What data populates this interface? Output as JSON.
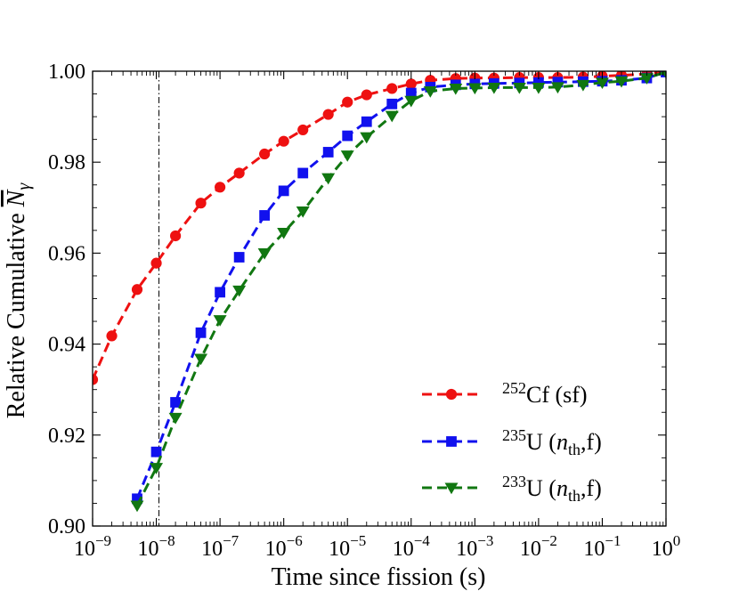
{
  "chart_data": {
    "type": "line",
    "xscale": "log",
    "xlim_exp": [
      -9,
      0
    ],
    "ylim": [
      0.9,
      1.0
    ],
    "xlabel": "Time since fission (s)",
    "ylabel": "Relative Cumulative N̅γ",
    "ylabel_text": "Relative Cumulative ",
    "ylabel_symbol": "N",
    "ylabel_subscript": "γ",
    "x_tick_base": "10",
    "x_ticks": [
      {
        "exp": "−9",
        "value": -9
      },
      {
        "exp": "−8",
        "value": -8
      },
      {
        "exp": "−7",
        "value": -7
      },
      {
        "exp": "−6",
        "value": -6
      },
      {
        "exp": "−5",
        "value": -5
      },
      {
        "exp": "−4",
        "value": -4
      },
      {
        "exp": "−3",
        "value": -3
      },
      {
        "exp": "−2",
        "value": -2
      },
      {
        "exp": "−1",
        "value": -1
      },
      {
        "exp": "0",
        "value": 0
      }
    ],
    "y_ticks": [
      {
        "label": "0.90",
        "value": 0.9
      },
      {
        "label": "0.92",
        "value": 0.92
      },
      {
        "label": "0.94",
        "value": 0.94
      },
      {
        "label": "0.96",
        "value": 0.96
      },
      {
        "label": "0.98",
        "value": 0.98
      },
      {
        "label": "1.00",
        "value": 1.0
      }
    ],
    "vertical_reference_line_x": 1.1e-08,
    "legend_position": "lower-right",
    "series": [
      {
        "name": "252Cf (sf)",
        "legend_sup": "252",
        "legend_main": "Cf (sf)",
        "legend_sub": "",
        "legend_tail": "",
        "color": "#ee1111",
        "marker": "circle",
        "x": [
          1e-09,
          2e-09,
          5e-09,
          1e-08,
          2e-08,
          5e-08,
          1e-07,
          2e-07,
          5e-07,
          1e-06,
          2e-06,
          5e-06,
          1e-05,
          2e-05,
          5e-05,
          0.0001,
          0.0002,
          0.0005,
          0.001,
          0.002,
          0.005,
          0.01,
          0.02,
          0.05,
          0.1,
          0.2,
          0.5,
          1
        ],
        "y": [
          0.9322,
          0.9418,
          0.952,
          0.9578,
          0.9638,
          0.971,
          0.9745,
          0.9776,
          0.9818,
          0.9846,
          0.9871,
          0.9905,
          0.9932,
          0.9948,
          0.9962,
          0.9972,
          0.998,
          0.9984,
          0.9985,
          0.9985,
          0.9986,
          0.9986,
          0.9986,
          0.9987,
          0.9989,
          0.9991,
          0.9994,
          1.0
        ]
      },
      {
        "name": "235U (nth,f)",
        "legend_sup": "235",
        "legend_main": "U (",
        "legend_sub": "th",
        "legend_tail": ",f)",
        "color": "#1111ee",
        "marker": "square",
        "x": [
          5e-09,
          1e-08,
          2e-08,
          5e-08,
          1e-07,
          2e-07,
          5e-07,
          1e-06,
          2e-06,
          5e-06,
          1e-05,
          2e-05,
          5e-05,
          0.0001,
          0.0002,
          0.0005,
          0.001,
          0.002,
          0.005,
          0.01,
          0.02,
          0.05,
          0.1,
          0.2,
          0.5,
          1
        ],
        "y": [
          0.906,
          0.9163,
          0.9272,
          0.9425,
          0.9514,
          0.9591,
          0.9683,
          0.9737,
          0.9776,
          0.9822,
          0.9858,
          0.9889,
          0.9928,
          0.9952,
          0.9965,
          0.997,
          0.9972,
          0.9973,
          0.9974,
          0.9975,
          0.9976,
          0.9977,
          0.9978,
          0.998,
          0.9985,
          0.9998
        ]
      },
      {
        "name": "233U (nth,f)",
        "legend_sup": "233",
        "legend_main": "U (",
        "legend_sub": "th",
        "legend_tail": ",f)",
        "color": "#117711",
        "marker": "triangle-down",
        "x": [
          5e-09,
          1e-08,
          2e-08,
          5e-08,
          1e-07,
          2e-07,
          5e-07,
          1e-06,
          2e-06,
          5e-06,
          1e-05,
          2e-05,
          5e-05,
          0.0001,
          0.0002,
          0.0005,
          0.001,
          0.002,
          0.005,
          0.01,
          0.02,
          0.05,
          0.1,
          0.2,
          0.5,
          1
        ],
        "y": [
          0.9045,
          0.9128,
          0.9238,
          0.9368,
          0.9453,
          0.9518,
          0.96,
          0.9645,
          0.9692,
          0.9765,
          0.9815,
          0.9855,
          0.9902,
          0.9935,
          0.9956,
          0.9962,
          0.9963,
          0.9964,
          0.9964,
          0.9964,
          0.9965,
          0.997,
          0.9975,
          0.9978,
          0.9985,
          0.9998
        ]
      }
    ]
  }
}
